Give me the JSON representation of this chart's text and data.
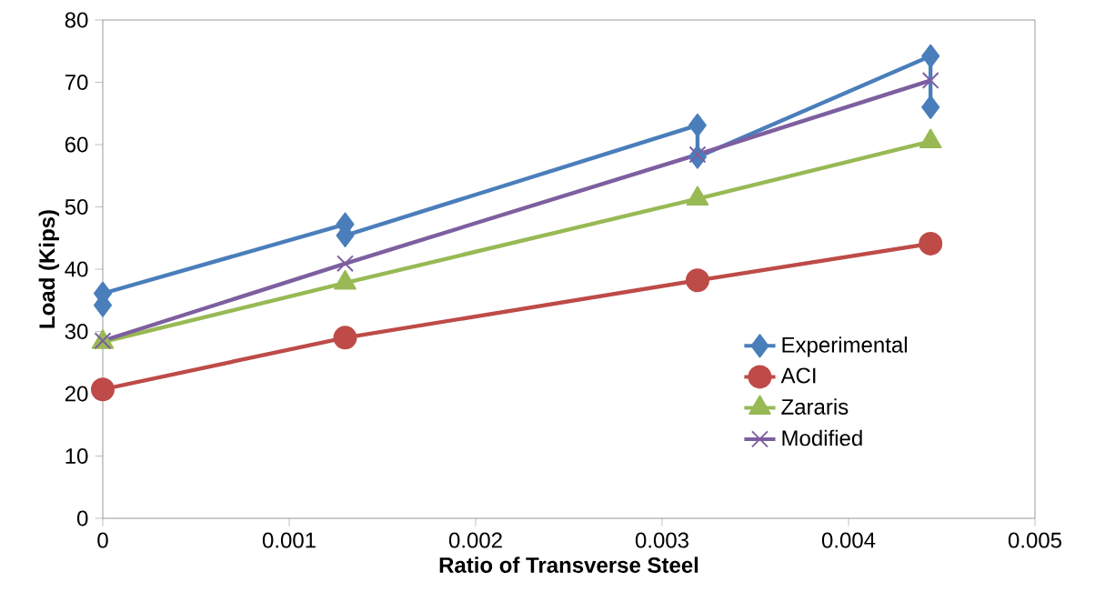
{
  "chart_data": {
    "type": "line",
    "xlabel": "Ratio of Transverse Steel",
    "ylabel": "Load (Kips)",
    "xlim": [
      0,
      0.005
    ],
    "xticks": [
      0,
      0.001,
      0.002,
      0.003,
      0.004,
      0.005
    ],
    "ylim": [
      0,
      80
    ],
    "yticks": [
      0,
      10,
      20,
      30,
      40,
      50,
      60,
      70,
      80
    ],
    "grid": false,
    "legend": "right",
    "series": [
      {
        "name": "Experimental",
        "color": "#4a7ebb",
        "marker": "diamond",
        "x": [
          0,
          0,
          0.0013,
          0.0013,
          0.00319,
          0.00319,
          0.00444,
          0.00444
        ],
        "values": [
          34.2,
          36.1,
          47.2,
          45.4,
          63.1,
          58.0,
          74.2,
          66.0
        ]
      },
      {
        "name": "ACI",
        "color": "#be4b48",
        "marker": "circle",
        "x": [
          0,
          0.0013,
          0.00319,
          0.00444
        ],
        "values": [
          20.7,
          29.0,
          38.2,
          44.1
        ]
      },
      {
        "name": "Zararis",
        "color": "#98b954",
        "marker": "triangle",
        "x": [
          0,
          0.0013,
          0.00319,
          0.00444
        ],
        "values": [
          28.3,
          37.8,
          51.3,
          60.5
        ]
      },
      {
        "name": "Modified",
        "color": "#7d5fa0",
        "marker": "cross",
        "x": [
          0,
          0.0013,
          0.00319,
          0.00444
        ],
        "values": [
          28.5,
          40.9,
          58.4,
          70.3
        ]
      }
    ]
  }
}
